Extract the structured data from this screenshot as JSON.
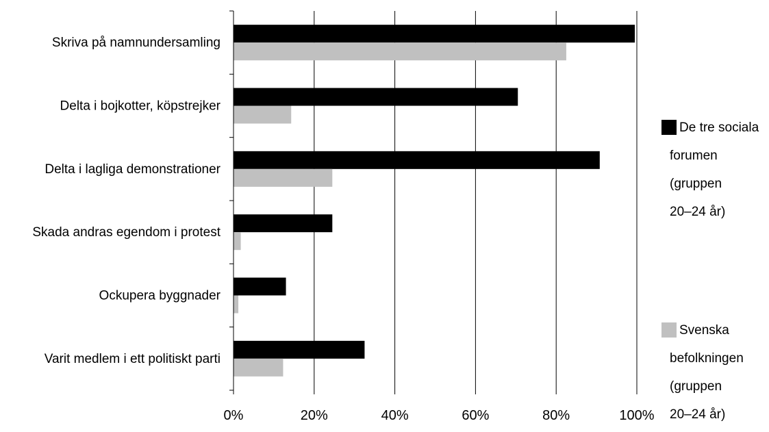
{
  "chart_data": {
    "type": "bar",
    "orientation": "horizontal",
    "categories": [
      "Skriva på namnundersamling",
      "Delta i bojkotter, köpstrejker",
      "Delta i lagliga demonstrationer",
      "Skada andras egendom i protest",
      "Ockupera byggnader",
      "Varit medlem i ett politiskt parti"
    ],
    "series": [
      {
        "name": "De tre sociala forumen (gruppen 20–24 år)",
        "legend_lines": [
          "De tre sociala",
          "forumen",
          "(gruppen",
          "20–24 år)"
        ],
        "color": "#000000",
        "values": [
          99.5,
          70.5,
          90.8,
          24.5,
          13,
          32.5
        ]
      },
      {
        "name": "Svenska befolkningen (gruppen 20–24 år)",
        "legend_lines": [
          "Svenska",
          "befolkningen",
          "(gruppen",
          "20–24 år)"
        ],
        "color": "#c0c0c0",
        "values": [
          82.5,
          14.3,
          24.5,
          1.8,
          1.2,
          12.3
        ]
      }
    ],
    "xlim": [
      0,
      100
    ],
    "xticks": [
      "0%",
      "20%",
      "40%",
      "60%",
      "80%",
      "100%"
    ],
    "grid": true,
    "legend_position": "right",
    "title": "",
    "xlabel": "",
    "ylabel": ""
  }
}
